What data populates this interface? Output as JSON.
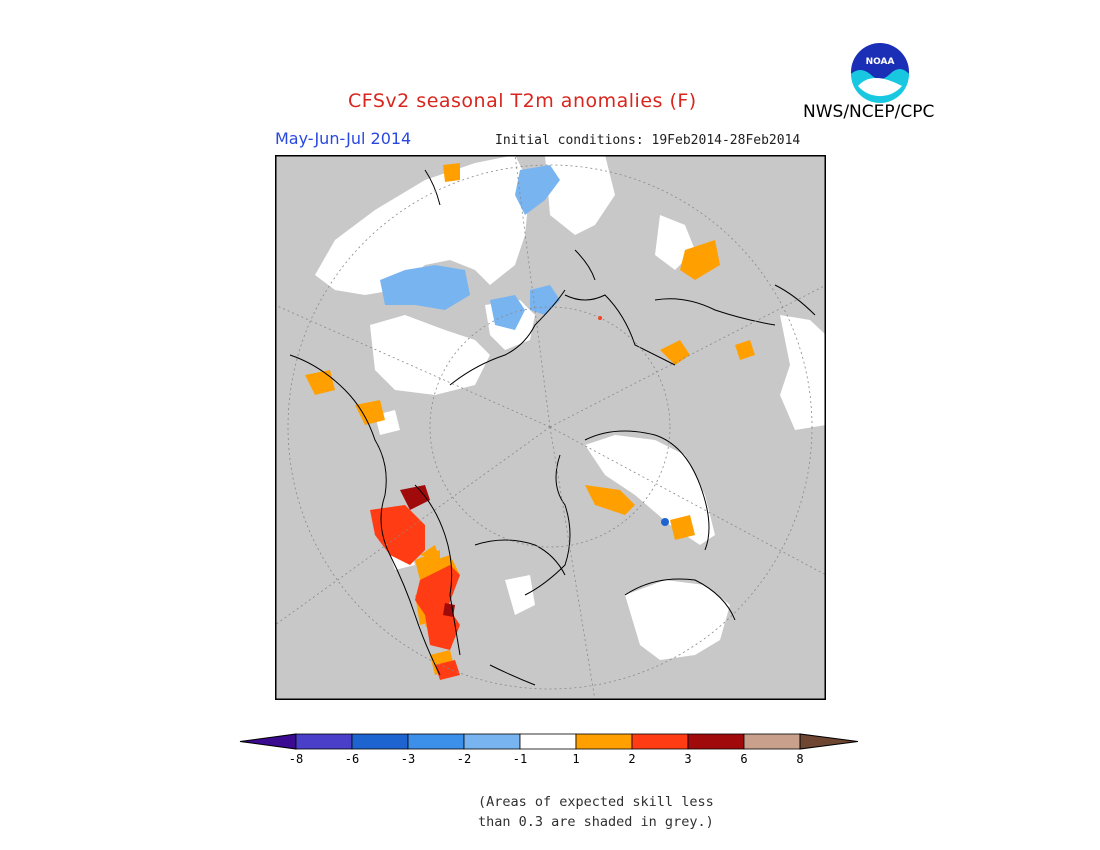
{
  "header": {
    "title": "CFSv2 seasonal T2m anomalies (F)",
    "season": "May-Jun-Jul 2014",
    "initial_conditions": "Initial conditions: 19Feb2014-28Feb2014",
    "agency": "NWS/NCEP/CPC",
    "logo_text": "NOAA"
  },
  "legend": {
    "labels": [
      "-8",
      "-6",
      "-3",
      "-2",
      "-1",
      "1",
      "2",
      "3",
      "6",
      "8"
    ],
    "colors": [
      "#3a0a90",
      "#4a3fc8",
      "#1e64d0",
      "#3c90ea",
      "#78b4f0",
      "#ffffff",
      "#ffa000",
      "#ff3c14",
      "#a00a0a",
      "#c8a08c",
      "#6e4632"
    ],
    "note_line1": "(Areas of expected skill less",
    "note_line2": "than 0.3 are shaded in grey.)"
  },
  "map_colors": {
    "grey": "#c8c8c8",
    "white": "#ffffff",
    "light_blue": "#78b4f0",
    "orange": "#ffa000",
    "red": "#ff3c14",
    "dark_red": "#a00a0a",
    "blue_dot": "#1e64d0"
  }
}
